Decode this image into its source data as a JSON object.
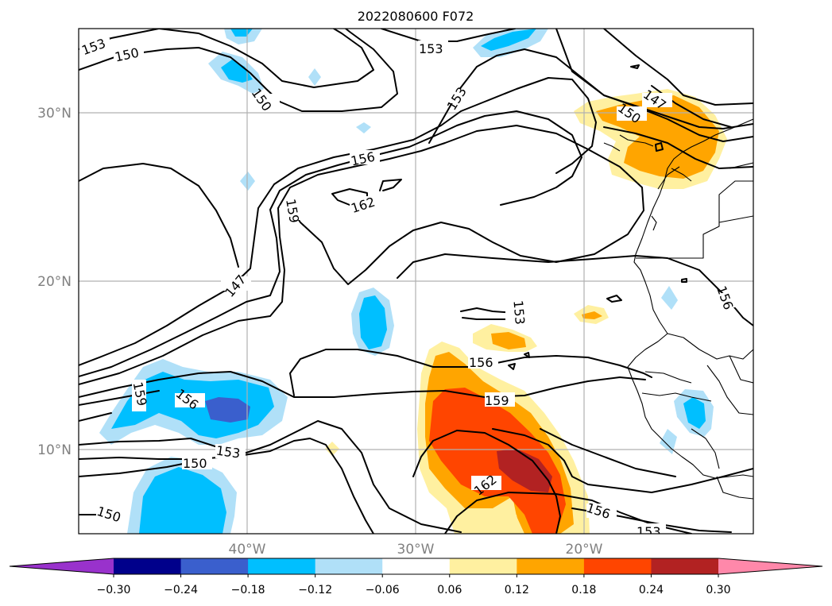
{
  "title": "2022080600 F072",
  "latitude_labels": [
    "30°N",
    "20°N",
    "10°N"
  ],
  "longitude_labels": [
    "40°W",
    "30°W",
    "20°W"
  ],
  "contour_labels": [
    "153",
    "150",
    "153",
    "153",
    "150",
    "147",
    "150",
    "156",
    "162",
    "159",
    "147",
    "153",
    "156",
    "156",
    "159",
    "156",
    "153",
    "150",
    "150",
    "162",
    "156",
    "153"
  ],
  "colorbar": {
    "ticks": [
      "−0.30",
      "−0.24",
      "−0.18",
      "−0.12",
      "−0.06",
      "0.06",
      "0.12",
      "0.18",
      "0.24",
      "0.30"
    ],
    "colors": [
      "#9932cc",
      "#00008b",
      "#3a5fcd",
      "#00bfff",
      "#b0e0f8",
      "#ffffff",
      "#fff0a0",
      "#ffa500",
      "#ff4500",
      "#b22222",
      "#ff88aa"
    ]
  },
  "shading_colors": {
    "light_blue": "#b0e0f8",
    "blue": "#00bfff",
    "royal_blue": "#3a5fcd",
    "light_yellow": "#fff0a0",
    "orange": "#ffa500",
    "red_orange": "#ff4500",
    "dark_red": "#b22222"
  }
}
